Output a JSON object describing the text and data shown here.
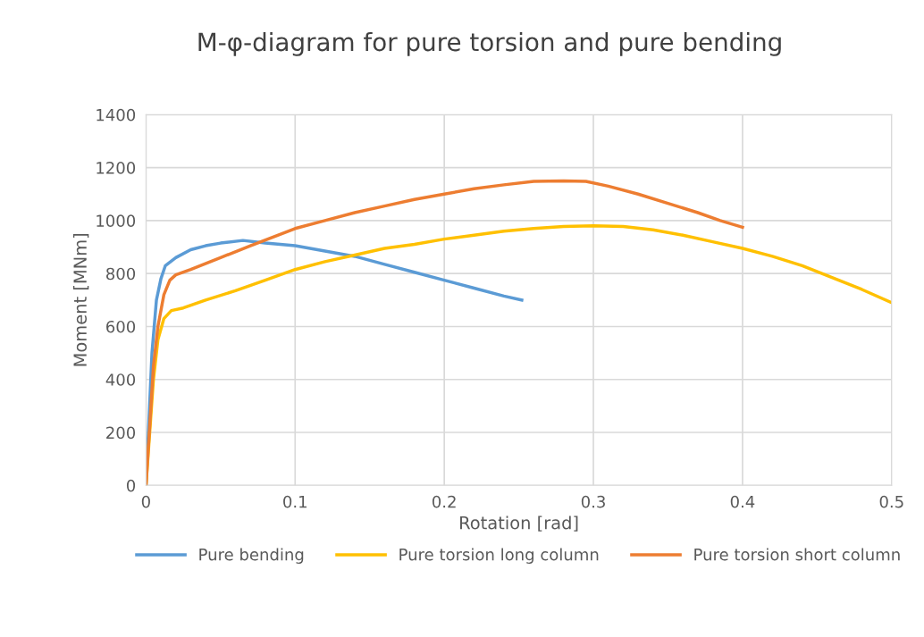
{
  "chart_data": {
    "type": "line",
    "title": "M-φ-diagram for pure torsion and pure bending",
    "xlabel": "Rotation [rad]",
    "ylabel": "Moment [MNm]",
    "xlim": [
      0,
      0.5
    ],
    "xticks": [
      0,
      0.1,
      0.2,
      0.3,
      0.4,
      0.5
    ],
    "ylim": [
      0,
      1400
    ],
    "yticks": [
      0,
      200,
      400,
      600,
      800,
      1000,
      1200,
      1400
    ],
    "grid": true,
    "legend": "bottom",
    "marker": "none",
    "line_style": "solid",
    "series": [
      {
        "name": "Pure bending",
        "color": "#5b9bd5",
        "x": [
          0,
          0.004,
          0.007,
          0.01,
          0.013,
          0.02,
          0.03,
          0.04,
          0.05,
          0.065,
          0.08,
          0.1,
          0.12,
          0.14,
          0.16,
          0.18,
          0.2,
          0.22,
          0.24,
          0.252
        ],
        "values": [
          0,
          500,
          700,
          780,
          830,
          860,
          890,
          905,
          915,
          925,
          915,
          905,
          885,
          865,
          835,
          805,
          775,
          745,
          715,
          700
        ]
      },
      {
        "name": "Pure torsion long column",
        "color": "#ffc000",
        "x": [
          0,
          0.005,
          0.008,
          0.012,
          0.017,
          0.025,
          0.04,
          0.06,
          0.08,
          0.1,
          0.12,
          0.14,
          0.16,
          0.18,
          0.2,
          0.22,
          0.24,
          0.26,
          0.28,
          0.3,
          0.32,
          0.34,
          0.36,
          0.38,
          0.4,
          0.42,
          0.44,
          0.46,
          0.48,
          0.5
        ],
        "values": [
          0,
          400,
          550,
          630,
          660,
          670,
          700,
          735,
          775,
          815,
          845,
          870,
          895,
          910,
          930,
          945,
          960,
          970,
          978,
          980,
          978,
          965,
          945,
          920,
          895,
          865,
          830,
          785,
          740,
          690
        ]
      },
      {
        "name": "Pure torsion short column",
        "color": "#ed7d31",
        "x": [
          0,
          0.005,
          0.008,
          0.012,
          0.016,
          0.02,
          0.03,
          0.05,
          0.07,
          0.1,
          0.12,
          0.14,
          0.16,
          0.18,
          0.2,
          0.22,
          0.24,
          0.26,
          0.28,
          0.295,
          0.31,
          0.33,
          0.35,
          0.37,
          0.385,
          0.4
        ],
        "values": [
          0,
          450,
          600,
          720,
          775,
          795,
          815,
          860,
          905,
          970,
          1000,
          1030,
          1055,
          1080,
          1100,
          1120,
          1135,
          1148,
          1150,
          1148,
          1130,
          1100,
          1065,
          1030,
          1000,
          975
        ]
      }
    ]
  }
}
